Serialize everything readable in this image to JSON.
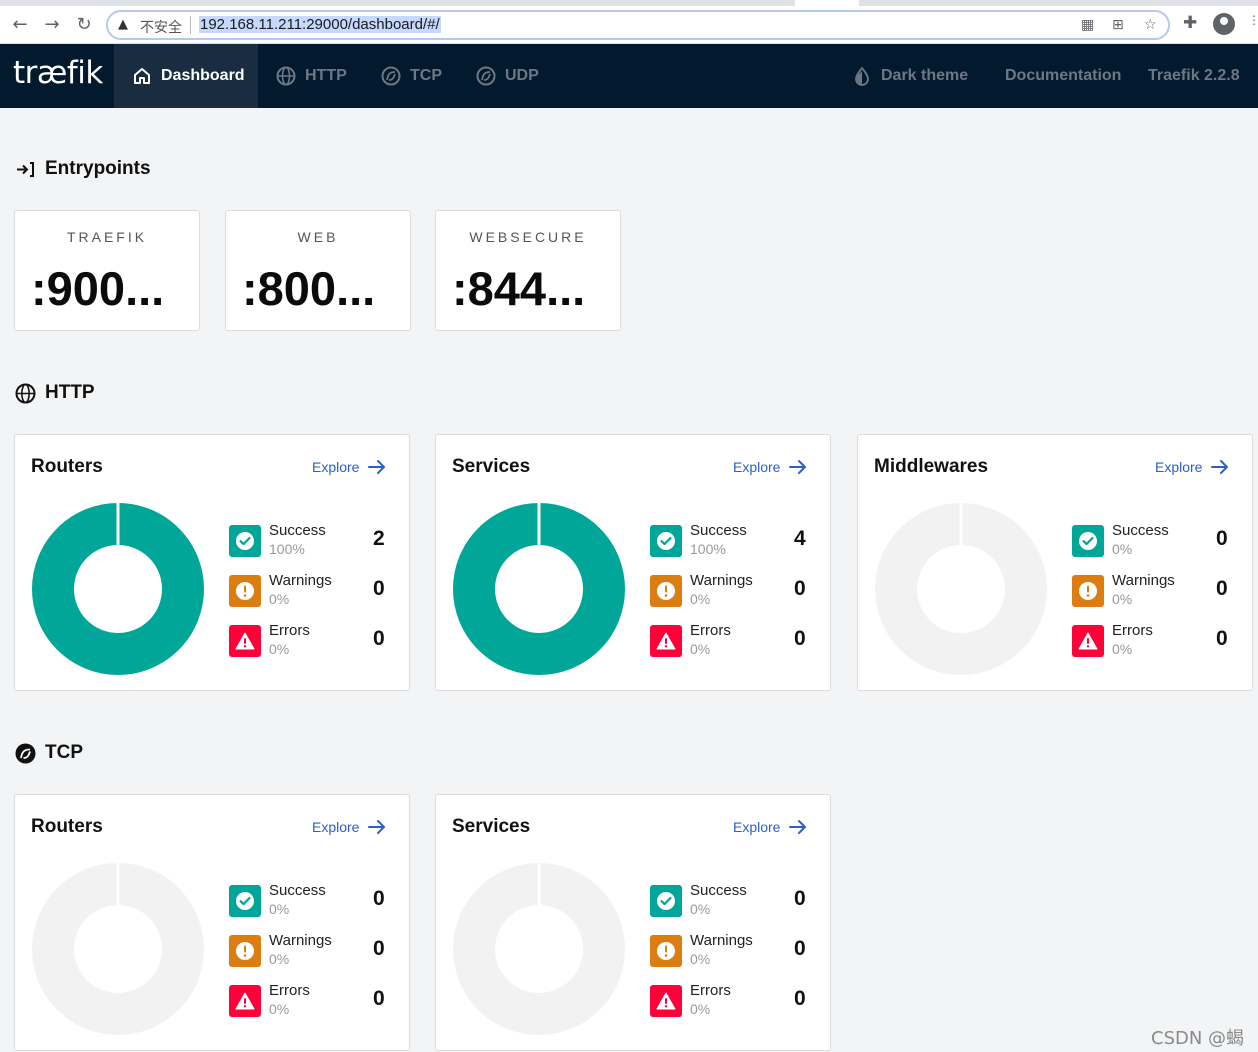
{
  "browser": {
    "back_icon": "back-arrow-icon",
    "forward_icon": "forward-arrow-icon",
    "reload_icon": "reload-icon",
    "security_label": "不安全",
    "url": "192.168.11.211:29000/dashboard/#/"
  },
  "navbar": {
    "logo": "træfik",
    "items": [
      {
        "label": "Dashboard",
        "active": true
      },
      {
        "label": "HTTP",
        "active": false
      },
      {
        "label": "TCP",
        "active": false
      },
      {
        "label": "UDP",
        "active": false
      }
    ],
    "dark_theme": "Dark theme",
    "documentation": "Documentation",
    "version": "Traefik 2.2.8"
  },
  "entrypoints": {
    "title": "Entrypoints",
    "items": [
      {
        "name": "TRAEFIK",
        "port": ":900..."
      },
      {
        "name": "WEB",
        "port": ":800..."
      },
      {
        "name": "WEBSECURE",
        "port": ":844..."
      }
    ]
  },
  "http": {
    "title": "HTTP",
    "cards": [
      {
        "title": "Routers",
        "explore": "Explore",
        "success": {
          "label": "Success",
          "pct": "100%",
          "count": "2"
        },
        "warnings": {
          "label": "Warnings",
          "pct": "0%",
          "count": "0"
        },
        "errors": {
          "label": "Errors",
          "pct": "0%",
          "count": "0"
        },
        "success_fraction": 1.0
      },
      {
        "title": "Services",
        "explore": "Explore",
        "success": {
          "label": "Success",
          "pct": "100%",
          "count": "4"
        },
        "warnings": {
          "label": "Warnings",
          "pct": "0%",
          "count": "0"
        },
        "errors": {
          "label": "Errors",
          "pct": "0%",
          "count": "0"
        },
        "success_fraction": 1.0
      },
      {
        "title": "Middlewares",
        "explore": "Explore",
        "success": {
          "label": "Success",
          "pct": "0%",
          "count": "0"
        },
        "warnings": {
          "label": "Warnings",
          "pct": "0%",
          "count": "0"
        },
        "errors": {
          "label": "Errors",
          "pct": "0%",
          "count": "0"
        },
        "success_fraction": 0.0
      }
    ]
  },
  "tcp": {
    "title": "TCP",
    "cards": [
      {
        "title": "Routers",
        "explore": "Explore",
        "success": {
          "label": "Success",
          "pct": "0%",
          "count": "0"
        },
        "warnings": {
          "label": "Warnings",
          "pct": "0%",
          "count": "0"
        },
        "errors": {
          "label": "Errors",
          "pct": "0%",
          "count": "0"
        },
        "success_fraction": 0.0
      },
      {
        "title": "Services",
        "explore": "Explore",
        "success": {
          "label": "Success",
          "pct": "0%",
          "count": "0"
        },
        "warnings": {
          "label": "Warnings",
          "pct": "0%",
          "count": "0"
        },
        "errors": {
          "label": "Errors",
          "pct": "0%",
          "count": "0"
        },
        "success_fraction": 0.0
      }
    ]
  },
  "colors": {
    "navbar_bg": "#03192d",
    "success": "#00a697",
    "warning": "#db7d11",
    "error": "#ff0039",
    "link": "#2b5fc5",
    "empty_donut": "#f2f2f3"
  },
  "watermark": "CSDN @蝎"
}
